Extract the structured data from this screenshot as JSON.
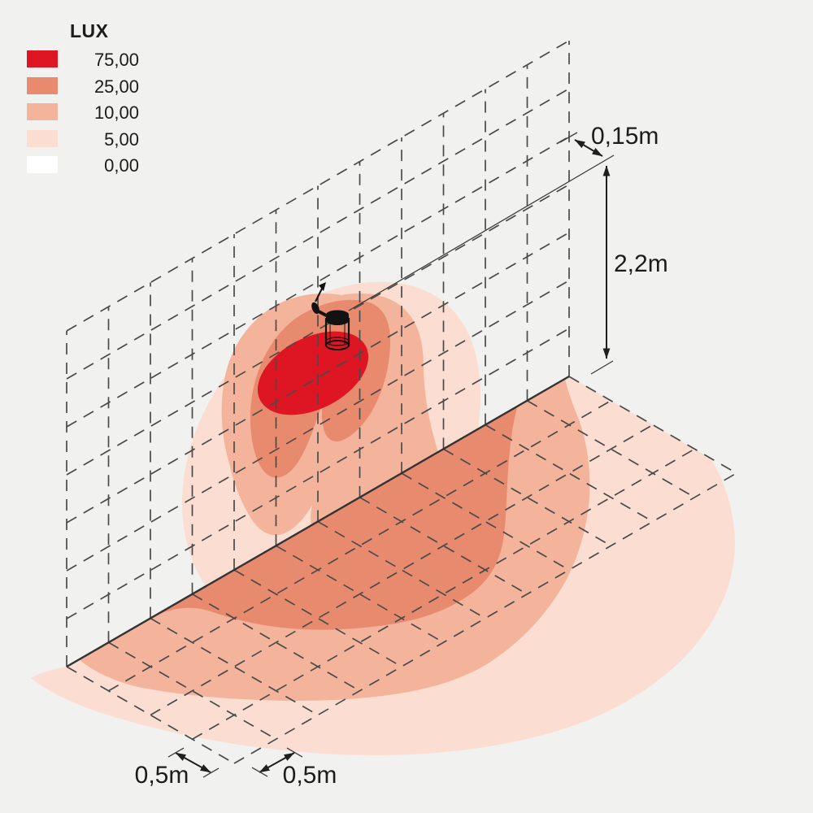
{
  "colors": {
    "bg": "#f1f1f0",
    "grid": "#4a4a4a",
    "baseline": "#333333",
    "ink": "#1c1c1c",
    "lux75": "#de1523",
    "lux25": "#e88a6e",
    "lux10": "#f3b49b",
    "lux5": "#fbded1",
    "lux0": "#ffffff"
  },
  "legend": {
    "title": "LUX",
    "items": [
      {
        "label": "75,00",
        "color": "#de1523"
      },
      {
        "label": "25,00",
        "color": "#e88a6e"
      },
      {
        "label": "10,00",
        "color": "#f3b49b"
      },
      {
        "label": "5,00",
        "color": "#fbded1"
      },
      {
        "label": "0,00",
        "color": "#ffffff"
      }
    ]
  },
  "dimensions": {
    "wall_offset": "0,15m",
    "mount_height": "2,2m",
    "grid_cell_left": "0,5m",
    "grid_cell_right": "0,5m"
  }
}
